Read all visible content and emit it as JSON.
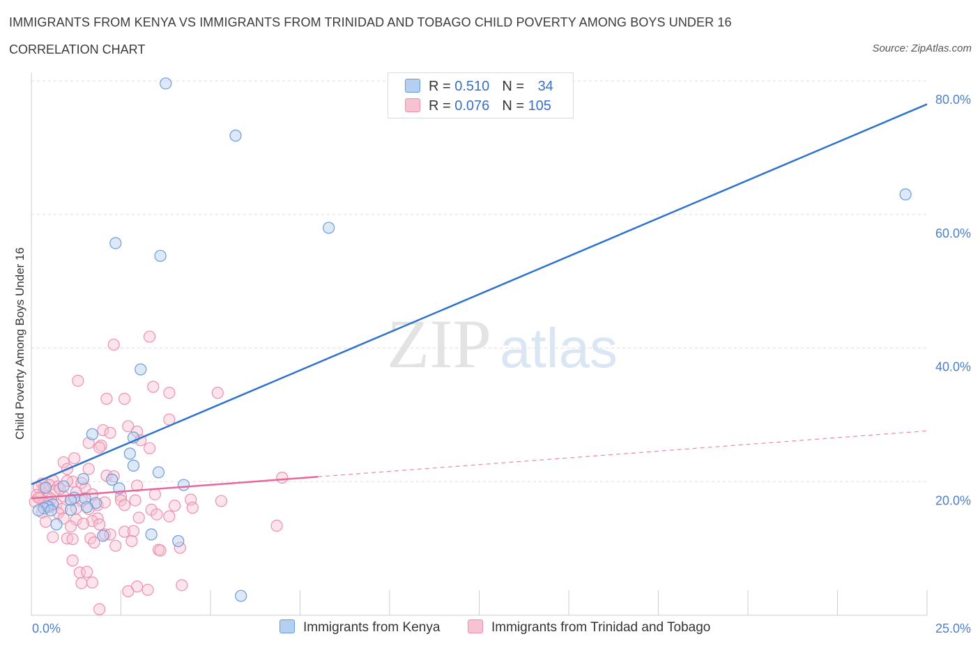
{
  "title": "IMMIGRANTS FROM KENYA VS IMMIGRANTS FROM TRINIDAD AND TOBAGO CHILD POVERTY AMONG BOYS UNDER 16",
  "subtitle": "CORRELATION CHART",
  "source": "Source: ZipAtlas.com",
  "watermark": {
    "zip": "ZIP",
    "atlas": "atlas"
  },
  "colors": {
    "kenya_fill": "#b3cff2",
    "kenya_stroke": "#6a9bd8",
    "kenya_line": "#2e72cc",
    "tt_fill": "#f7c3d3",
    "tt_stroke": "#ee8fae",
    "tt_line": "#e8669a",
    "tick_label": "#4a7fc9",
    "grid": "#dddddd"
  },
  "legend_top": {
    "rows": [
      {
        "r_label": "R = ",
        "r_value": "0.510",
        "n_label": "N = ",
        "n_value": "34"
      },
      {
        "r_label": "R = ",
        "r_value": "0.076",
        "n_label": "N = ",
        "n_value": "105"
      }
    ]
  },
  "chart_data": {
    "type": "scatter",
    "title": "IMMIGRANTS FROM KENYA VS IMMIGRANTS FROM TRINIDAD AND TOBAGO CHILD POVERTY AMONG BOYS UNDER 16",
    "xlabel": "",
    "ylabel": "Child Poverty Among Boys Under 16",
    "xlim": [
      0,
      25
    ],
    "ylim": [
      0,
      80
    ],
    "x_tick_labels": [
      "0.0%",
      "25.0%"
    ],
    "y_ticks": [
      20,
      40,
      60,
      80
    ],
    "y_tick_labels": [
      "20.0%",
      "40.0%",
      "60.0%",
      "80.0%"
    ],
    "legend": [
      "Immigrants from Kenya",
      "Immigrants from Trinidad and Tobago"
    ],
    "series": [
      {
        "name": "Immigrants from Kenya",
        "R": 0.51,
        "N": 34,
        "trend": {
          "x": [
            0,
            25
          ],
          "y": [
            19.6,
            76.5
          ],
          "dashed_from": null
        },
        "points": [
          [
            3.75,
            79.6
          ],
          [
            5.7,
            71.8
          ],
          [
            8.3,
            58.0
          ],
          [
            24.4,
            63.0
          ],
          [
            2.35,
            55.7
          ],
          [
            3.6,
            53.8
          ],
          [
            3.05,
            36.8
          ],
          [
            1.7,
            27.1
          ],
          [
            2.85,
            26.6
          ],
          [
            2.75,
            24.2
          ],
          [
            2.85,
            22.4
          ],
          [
            3.55,
            21.4
          ],
          [
            1.45,
            20.4
          ],
          [
            2.25,
            20.3
          ],
          [
            2.45,
            19.0
          ],
          [
            4.25,
            19.5
          ],
          [
            0.9,
            19.3
          ],
          [
            0.4,
            19.1
          ],
          [
            1.2,
            17.6
          ],
          [
            1.5,
            17.5
          ],
          [
            1.1,
            17.2
          ],
          [
            1.8,
            16.8
          ],
          [
            0.6,
            16.6
          ],
          [
            0.45,
            16.3
          ],
          [
            1.55,
            16.2
          ],
          [
            0.35,
            16.0
          ],
          [
            0.2,
            15.7
          ],
          [
            1.1,
            15.8
          ],
          [
            0.55,
            15.7
          ],
          [
            0.7,
            13.6
          ],
          [
            2.0,
            11.9
          ],
          [
            3.35,
            12.1
          ],
          [
            4.1,
            11.1
          ],
          [
            5.85,
            2.9
          ]
        ]
      },
      {
        "name": "Immigrants from Trinidad and Tobago",
        "R": 0.076,
        "N": 105,
        "trend": {
          "x": [
            0,
            25
          ],
          "y": [
            17.5,
            27.6
          ],
          "solid_until": 8.0
        },
        "points": [
          [
            3.3,
            41.7
          ],
          [
            2.3,
            40.5
          ],
          [
            1.3,
            35.1
          ],
          [
            3.4,
            34.2
          ],
          [
            3.85,
            33.3
          ],
          [
            5.2,
            33.3
          ],
          [
            2.1,
            32.4
          ],
          [
            2.6,
            32.4
          ],
          [
            3.85,
            29.3
          ],
          [
            2.7,
            28.3
          ],
          [
            2.0,
            27.7
          ],
          [
            2.2,
            27.3
          ],
          [
            2.95,
            27.5
          ],
          [
            3.05,
            26.2
          ],
          [
            1.6,
            25.8
          ],
          [
            1.95,
            25.4
          ],
          [
            1.9,
            25.1
          ],
          [
            3.3,
            25.0
          ],
          [
            1.2,
            23.5
          ],
          [
            0.9,
            22.9
          ],
          [
            1.0,
            21.9
          ],
          [
            1.6,
            21.9
          ],
          [
            2.1,
            20.9
          ],
          [
            7.0,
            20.6
          ],
          [
            0.6,
            20.2
          ],
          [
            1.15,
            20.0
          ],
          [
            1.4,
            19.8
          ],
          [
            0.3,
            19.7
          ],
          [
            0.5,
            19.5
          ],
          [
            0.75,
            19.3
          ],
          [
            2.95,
            19.4
          ],
          [
            0.2,
            19.1
          ],
          [
            0.35,
            19.0
          ],
          [
            1.5,
            19.0
          ],
          [
            0.65,
            18.6
          ],
          [
            1.25,
            18.4
          ],
          [
            3.45,
            18.1
          ],
          [
            0.15,
            18.0
          ],
          [
            0.45,
            17.8
          ],
          [
            0.9,
            17.8
          ],
          [
            2.5,
            17.8
          ],
          [
            0.25,
            17.5
          ],
          [
            0.55,
            17.4
          ],
          [
            1.1,
            17.3
          ],
          [
            1.4,
            17.1
          ],
          [
            2.5,
            17.2
          ],
          [
            2.9,
            17.2
          ],
          [
            4.45,
            17.3
          ],
          [
            5.3,
            17.1
          ],
          [
            0.1,
            17.0
          ],
          [
            0.35,
            16.8
          ],
          [
            0.7,
            16.6
          ],
          [
            1.85,
            16.5
          ],
          [
            2.6,
            16.5
          ],
          [
            4.0,
            16.4
          ],
          [
            4.5,
            16.1
          ],
          [
            0.5,
            16.2
          ],
          [
            0.85,
            15.9
          ],
          [
            1.6,
            15.9
          ],
          [
            3.35,
            15.8
          ],
          [
            0.75,
            15.3
          ],
          [
            3.5,
            15.1
          ],
          [
            3.85,
            14.8
          ],
          [
            0.9,
            14.5
          ],
          [
            1.85,
            14.5
          ],
          [
            1.25,
            14.3
          ],
          [
            1.7,
            14.1
          ],
          [
            0.4,
            14.0
          ],
          [
            1.45,
            13.7
          ],
          [
            1.9,
            13.6
          ],
          [
            6.85,
            13.4
          ],
          [
            1.1,
            13.3
          ],
          [
            2.6,
            12.5
          ],
          [
            2.05,
            12.1
          ],
          [
            2.85,
            12.6
          ],
          [
            0.6,
            11.7
          ],
          [
            1.0,
            11.5
          ],
          [
            1.15,
            11.4
          ],
          [
            1.65,
            11.5
          ],
          [
            2.8,
            11.1
          ],
          [
            1.75,
            10.9
          ],
          [
            2.35,
            10.4
          ],
          [
            4.15,
            10.1
          ],
          [
            3.55,
            9.8
          ],
          [
            3.6,
            9.7
          ],
          [
            1.15,
            8.2
          ],
          [
            1.35,
            6.4
          ],
          [
            1.55,
            6.5
          ],
          [
            1.4,
            4.8
          ],
          [
            1.7,
            4.9
          ],
          [
            4.2,
            4.5
          ],
          [
            2.95,
            4.3
          ],
          [
            2.7,
            3.6
          ],
          [
            3.25,
            3.8
          ],
          [
            1.9,
            0.9
          ],
          [
            2.3,
            20.8
          ],
          [
            1.0,
            20.1
          ],
          [
            0.2,
            17.6
          ],
          [
            2.05,
            16.9
          ],
          [
            1.7,
            18.1
          ],
          [
            0.8,
            18.9
          ],
          [
            0.3,
            15.4
          ],
          [
            1.25,
            16.0
          ],
          [
            3.0,
            14.6
          ],
          [
            2.2,
            12.1
          ]
        ]
      }
    ]
  }
}
